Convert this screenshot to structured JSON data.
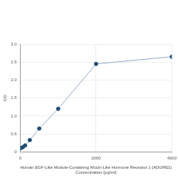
{
  "chart_data": {
    "type": "line",
    "x_label": [
      "Human EGF-Like Module-Containing Mucin-Like Hormone Receptor 1 (ADGRE1)",
      "Concentration (pg/ml)"
    ],
    "y_label": "OD",
    "x": [
      0,
      62.5,
      125,
      250,
      500,
      1000,
      2000,
      4000
    ],
    "values": [
      0.1,
      0.13,
      0.18,
      0.33,
      0.65,
      1.2,
      2.45,
      2.65
    ],
    "color": "#1f4e79",
    "marker": "circle",
    "xlim": [
      0,
      4000
    ],
    "xticks": [
      0,
      2000,
      4000
    ],
    "ylim": [
      0,
      3
    ],
    "yticks": [
      0,
      0.5,
      {
        "value": 1,
        "label": "1.0"
      },
      1.5,
      {
        "value": 2,
        "label": "2.0"
      },
      2.5,
      {
        "value": 3,
        "label": "3.0"
      }
    ],
    "grid": true
  }
}
